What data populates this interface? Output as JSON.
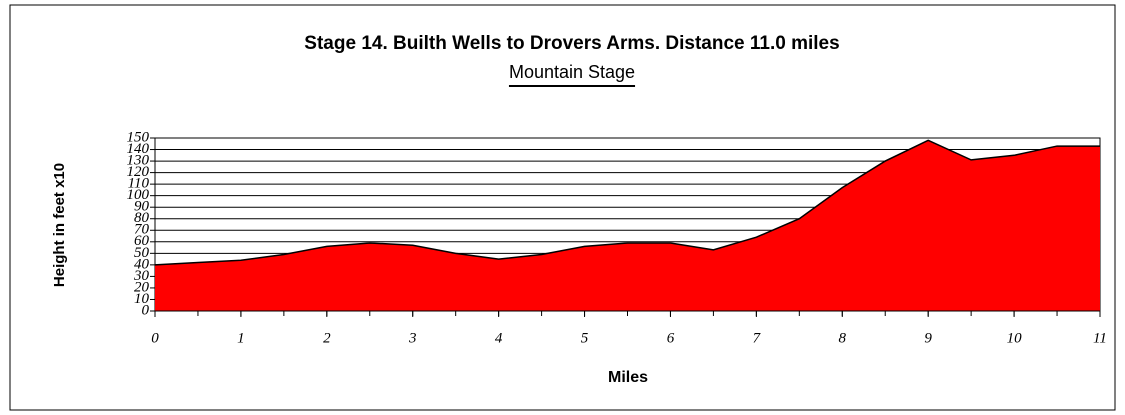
{
  "chart_data": {
    "type": "area",
    "title": "Stage 14. Builth Wells to Drovers Arms.   Distance 11.0 miles",
    "subtitle": "Mountain Stage",
    "x_label": "Miles",
    "y_label": "Height in feet x10",
    "x": [
      0,
      0.5,
      1,
      1.5,
      2,
      2.5,
      3,
      3.5,
      4,
      4.5,
      5,
      5.5,
      6,
      6.5,
      7,
      7.5,
      8,
      8.5,
      9,
      9.5,
      10,
      10.5,
      11
    ],
    "series": [
      {
        "name": "Height",
        "color": "#ff0000",
        "values": [
          40,
          42,
          44,
          49,
          56,
          59,
          57,
          50,
          45,
          49,
          56,
          59,
          59,
          53,
          64,
          80,
          107,
          130,
          148,
          131,
          135,
          143,
          143
        ]
      }
    ],
    "xlim": [
      0,
      11
    ],
    "xticks": [
      0,
      1,
      2,
      3,
      4,
      5,
      6,
      7,
      8,
      9,
      10,
      11
    ],
    "ylim": [
      0,
      150
    ],
    "yticks": [
      0,
      10,
      20,
      30,
      40,
      50,
      60,
      70,
      80,
      90,
      100,
      110,
      120,
      130,
      140,
      150
    ],
    "grid": true
  }
}
